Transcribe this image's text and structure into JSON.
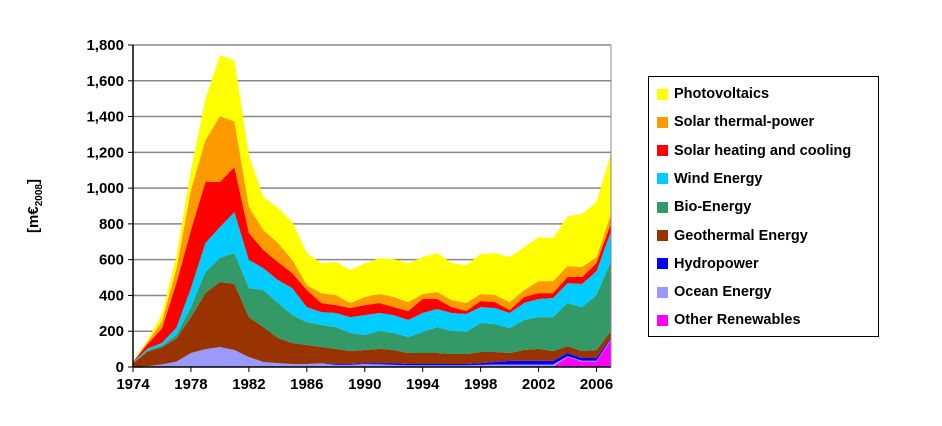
{
  "chart_data": {
    "type": "area",
    "stacked": true,
    "title": "",
    "xlabel": "",
    "ylabel": "[m€2008]",
    "ylabel_main": "[m€",
    "ylabel_sub": "2008",
    "ylabel_end": "]",
    "xlim": [
      1974,
      2007
    ],
    "ylim": [
      0,
      1800
    ],
    "grid": true,
    "legend_position": "right",
    "yticks": [
      "0",
      "200",
      "400",
      "600",
      "800",
      "1,000",
      "1,200",
      "1,400",
      "1,600",
      "1,800"
    ],
    "xticks": [
      "1974",
      "1978",
      "1982",
      "1986",
      "1990",
      "1994",
      "1998",
      "2002",
      "2006"
    ],
    "x": [
      1974,
      1975,
      1976,
      1977,
      1978,
      1979,
      1980,
      1981,
      1982,
      1983,
      1984,
      1985,
      1986,
      1987,
      1988,
      1989,
      1990,
      1991,
      1992,
      1993,
      1994,
      1995,
      1996,
      1997,
      1998,
      1999,
      2000,
      2001,
      2002,
      2003,
      2004,
      2005,
      2006,
      2007
    ],
    "series": [
      {
        "name": "Other Renewables",
        "color": "#FF00FF",
        "values": [
          0,
          0,
          0,
          0,
          0,
          0,
          0,
          0,
          0,
          0,
          0,
          0,
          0,
          0,
          0,
          0,
          0,
          0,
          0,
          0,
          0,
          0,
          0,
          0,
          0,
          0,
          0,
          0,
          0,
          0,
          55,
          30,
          30,
          150
        ]
      },
      {
        "name": "Ocean Energy",
        "color": "#9999FF",
        "values": [
          0,
          5,
          15,
          30,
          78,
          100,
          112,
          95,
          56,
          28,
          22,
          17,
          17,
          20,
          12,
          12,
          17,
          15,
          12,
          10,
          10,
          10,
          10,
          10,
          12,
          14,
          14,
          14,
          14,
          14,
          5,
          5,
          5,
          6
        ]
      },
      {
        "name": "Hydropower",
        "color": "#0000FF",
        "values": [
          0,
          0,
          0,
          0,
          0,
          0,
          0,
          0,
          0,
          0,
          0,
          0,
          0,
          2,
          5,
          5,
          5,
          7,
          10,
          7,
          7,
          7,
          7,
          7,
          10,
          14,
          20,
          20,
          20,
          20,
          18,
          15,
          15,
          6
        ]
      },
      {
        "name": "Geothermal Energy",
        "color": "#993300",
        "values": [
          20,
          80,
          95,
          130,
          201,
          313,
          363,
          369,
          223,
          195,
          140,
          117,
          106,
          90,
          84,
          72,
          73,
          79,
          73,
          61,
          61,
          61,
          56,
          56,
          62,
          56,
          44,
          61,
          67,
          55,
          39,
          39,
          45,
          39
        ]
      },
      {
        "name": "Bio-Energy",
        "color": "#339966",
        "values": [
          3,
          8,
          10,
          20,
          56,
          118,
          134,
          173,
          162,
          207,
          196,
          156,
          128,
          123,
          122,
          101,
          84,
          100,
          95,
          90,
          118,
          145,
          128,
          123,
          162,
          156,
          140,
          168,
          178,
          190,
          241,
          246,
          307,
          391
        ]
      },
      {
        "name": "Wind Energy",
        "color": "#00CCFF",
        "values": [
          2,
          10,
          15,
          40,
          106,
          162,
          173,
          229,
          157,
          123,
          128,
          151,
          84,
          72,
          79,
          89,
          111,
          101,
          100,
          95,
          106,
          101,
          101,
          100,
          89,
          90,
          84,
          95,
          101,
          107,
          111,
          129,
          134,
          167
        ]
      },
      {
        "name": "Solar heating and cooling",
        "color": "#FF0000",
        "values": [
          3,
          25,
          80,
          250,
          324,
          341,
          252,
          251,
          151,
          101,
          101,
          84,
          95,
          51,
          44,
          51,
          56,
          56,
          45,
          50,
          78,
          56,
          33,
          17,
          34,
          33,
          16,
          33,
          33,
          27,
          34,
          39,
          45,
          45
        ]
      },
      {
        "name": "Solar thermal-power",
        "color": "#FF9900",
        "values": [
          1,
          12,
          40,
          80,
          224,
          234,
          368,
          257,
          145,
          111,
          106,
          73,
          28,
          55,
          56,
          28,
          45,
          50,
          56,
          50,
          28,
          39,
          39,
          45,
          39,
          39,
          45,
          39,
          67,
          67,
          61,
          56,
          33,
          50
        ]
      },
      {
        "name": "Photovoltaics",
        "color": "#FFFF00",
        "values": [
          1,
          10,
          40,
          70,
          111,
          232,
          341,
          341,
          291,
          185,
          197,
          212,
          179,
          167,
          185,
          184,
          189,
          200,
          212,
          218,
          206,
          218,
          207,
          212,
          223,
          235,
          251,
          240,
          246,
          241,
          279,
          296,
          308,
          341
        ]
      }
    ]
  }
}
